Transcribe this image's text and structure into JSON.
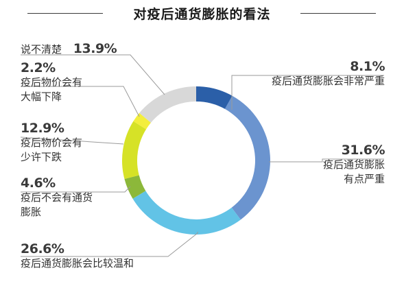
{
  "chart_data": {
    "type": "pie",
    "donut": true,
    "title": "对疫后通货膨胀的看法",
    "slices": [
      {
        "label": "疫后通货膨胀会非常严重",
        "value": 8.1,
        "display": "8.1%",
        "color": "#2b5fa8"
      },
      {
        "label": "疫后通货膨胀有点严重",
        "value": 31.6,
        "display": "31.6%",
        "color": "#6b94cf"
      },
      {
        "label": "疫后通货膨胀会比较温和",
        "value": 26.6,
        "display": "26.6%",
        "color": "#62c3e6"
      },
      {
        "label": "疫后不会有通货膨胀",
        "value": 4.6,
        "display": "4.6%",
        "color": "#8cb83a"
      },
      {
        "label": "疫后物价会有少许下跌",
        "value": 12.9,
        "display": "12.9%",
        "color": "#d6e227"
      },
      {
        "label": "疫后物价会有大幅下降",
        "value": 2.2,
        "display": "2.2%",
        "color": "#f3ee3d"
      },
      {
        "label": "说不清楚",
        "value": 13.9,
        "display": "13.9%",
        "color": "#d8d8d8"
      }
    ]
  },
  "labels": {
    "s0": {
      "pct": "8.1%",
      "lines": [
        "疫后通货膨胀会非常严重"
      ]
    },
    "s1": {
      "pct": "31.6%",
      "lines": [
        "疫后通货膨胀",
        "有点严重"
      ]
    },
    "s2": {
      "pct": "26.6%",
      "lines": [
        "疫后通货膨胀会比较温和"
      ]
    },
    "s3": {
      "pct": "4.6%",
      "lines": [
        "疫后不会有通货",
        "膨胀"
      ]
    },
    "s4": {
      "pct": "12.9%",
      "lines": [
        "疫后物价会有",
        "少许下跌"
      ]
    },
    "s5": {
      "pct": "2.2%",
      "lines": [
        "疫后物价会有",
        "大幅下降"
      ]
    },
    "s6": {
      "pct": "13.9%",
      "lines": [
        "说不清楚"
      ]
    }
  },
  "colors": {
    "leader": "#9a9a9a",
    "text": "#333333"
  }
}
